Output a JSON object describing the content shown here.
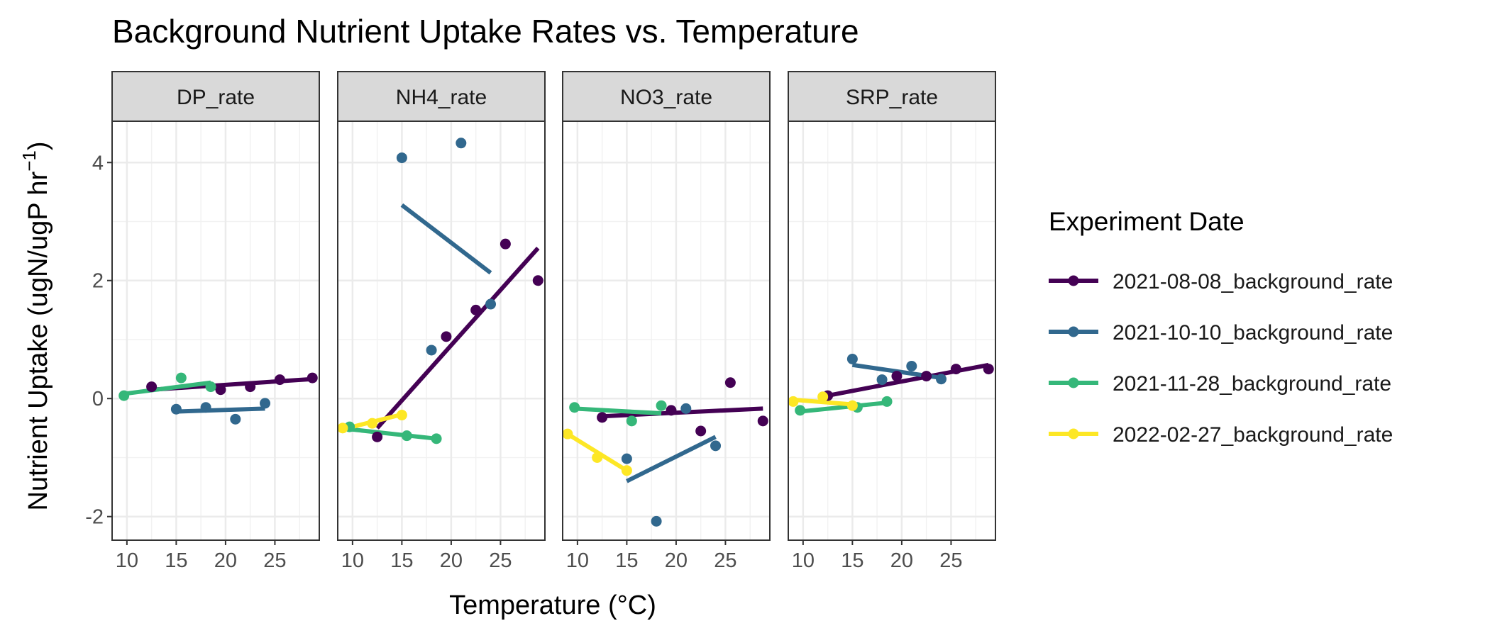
{
  "chart_data": {
    "type": "scatter",
    "title": "Background Nutrient Uptake Rates vs. Temperature",
    "xlabel": "Temperature (°C)",
    "ylabel": {
      "main": "Nutrient Uptake (ugN/ugP hr",
      "superscript": "−1",
      "close": ")"
    },
    "xlim": [
      8.5,
      29.5
    ],
    "ylim": [
      -2.4,
      4.7
    ],
    "xticks": [
      10,
      15,
      20,
      25
    ],
    "yticks": [
      -2,
      0,
      2,
      4
    ],
    "grid": true,
    "legend": {
      "title": "Experiment Date",
      "placement": "right"
    },
    "series": [
      {
        "name": "2021-08-08_background_rate",
        "color": "#440154"
      },
      {
        "name": "2021-10-10_background_rate",
        "color": "#31688E"
      },
      {
        "name": "2021-11-28_background_rate",
        "color": "#35B779"
      },
      {
        "name": "2022-02-27_background_rate",
        "color": "#FDE725"
      }
    ],
    "panels": [
      {
        "label": "DP_rate",
        "points": [
          {
            "series": 0,
            "x": 12.5,
            "y": 0.2
          },
          {
            "series": 0,
            "x": 19.5,
            "y": 0.15
          },
          {
            "series": 0,
            "x": 22.5,
            "y": 0.2
          },
          {
            "series": 0,
            "x": 25.5,
            "y": 0.32
          },
          {
            "series": 0,
            "x": 28.8,
            "y": 0.35
          },
          {
            "series": 1,
            "x": 15,
            "y": -0.18
          },
          {
            "series": 1,
            "x": 18,
            "y": -0.15
          },
          {
            "series": 1,
            "x": 21,
            "y": -0.35
          },
          {
            "series": 1,
            "x": 24,
            "y": -0.08
          },
          {
            "series": 2,
            "x": 9.7,
            "y": 0.05
          },
          {
            "series": 2,
            "x": 15.5,
            "y": 0.35
          },
          {
            "series": 2,
            "x": 18.5,
            "y": 0.2
          }
        ],
        "fits": [
          {
            "series": 0,
            "x": [
              12.5,
              28.8
            ],
            "y": [
              0.15,
              0.33
            ]
          },
          {
            "series": 1,
            "x": [
              15,
              24
            ],
            "y": [
              -0.22,
              -0.17
            ]
          },
          {
            "series": 2,
            "x": [
              9.7,
              18.5
            ],
            "y": [
              0.08,
              0.27
            ]
          }
        ]
      },
      {
        "label": "NH4_rate",
        "points": [
          {
            "series": 0,
            "x": 12.5,
            "y": -0.65
          },
          {
            "series": 0,
            "x": 19.5,
            "y": 1.05
          },
          {
            "series": 0,
            "x": 22.5,
            "y": 1.5
          },
          {
            "series": 0,
            "x": 25.5,
            "y": 2.62
          },
          {
            "series": 0,
            "x": 28.8,
            "y": 2.0
          },
          {
            "series": 1,
            "x": 15,
            "y": 4.08
          },
          {
            "series": 1,
            "x": 18,
            "y": 0.82
          },
          {
            "series": 1,
            "x": 21,
            "y": 4.33
          },
          {
            "series": 1,
            "x": 24,
            "y": 1.6
          },
          {
            "series": 2,
            "x": 9.7,
            "y": -0.48
          },
          {
            "series": 2,
            "x": 15.5,
            "y": -0.63
          },
          {
            "series": 2,
            "x": 18.5,
            "y": -0.68
          },
          {
            "series": 3,
            "x": 9,
            "y": -0.5
          },
          {
            "series": 3,
            "x": 12,
            "y": -0.42
          },
          {
            "series": 3,
            "x": 15,
            "y": -0.28
          }
        ],
        "fits": [
          {
            "series": 0,
            "x": [
              12.5,
              28.8
            ],
            "y": [
              -0.5,
              2.55
            ]
          },
          {
            "series": 1,
            "x": [
              15,
              24
            ],
            "y": [
              3.28,
              2.13
            ]
          },
          {
            "series": 2,
            "x": [
              9.7,
              18.5
            ],
            "y": [
              -0.52,
              -0.68
            ]
          },
          {
            "series": 3,
            "x": [
              9,
              15
            ],
            "y": [
              -0.52,
              -0.27
            ]
          }
        ]
      },
      {
        "label": "NO3_rate",
        "points": [
          {
            "series": 0,
            "x": 12.5,
            "y": -0.32
          },
          {
            "series": 0,
            "x": 19.5,
            "y": -0.2
          },
          {
            "series": 0,
            "x": 22.5,
            "y": -0.55
          },
          {
            "series": 0,
            "x": 25.5,
            "y": 0.27
          },
          {
            "series": 0,
            "x": 28.8,
            "y": -0.38
          },
          {
            "series": 1,
            "x": 15,
            "y": -1.02
          },
          {
            "series": 1,
            "x": 18,
            "y": -2.08
          },
          {
            "series": 1,
            "x": 21,
            "y": -0.17
          },
          {
            "series": 1,
            "x": 24,
            "y": -0.8
          },
          {
            "series": 2,
            "x": 9.7,
            "y": -0.15
          },
          {
            "series": 2,
            "x": 15.5,
            "y": -0.38
          },
          {
            "series": 2,
            "x": 18.5,
            "y": -0.12
          },
          {
            "series": 3,
            "x": 9,
            "y": -0.6
          },
          {
            "series": 3,
            "x": 12,
            "y": -1.0
          },
          {
            "series": 3,
            "x": 15,
            "y": -1.22
          }
        ],
        "fits": [
          {
            "series": 0,
            "x": [
              12.5,
              28.8
            ],
            "y": [
              -0.3,
              -0.17
            ]
          },
          {
            "series": 1,
            "x": [
              15,
              24
            ],
            "y": [
              -1.4,
              -0.65
            ]
          },
          {
            "series": 2,
            "x": [
              9.7,
              18.5
            ],
            "y": [
              -0.17,
              -0.25
            ]
          },
          {
            "series": 3,
            "x": [
              9,
              15
            ],
            "y": [
              -0.6,
              -1.22
            ]
          }
        ]
      },
      {
        "label": "SRP_rate",
        "points": [
          {
            "series": 0,
            "x": 12.5,
            "y": 0.05
          },
          {
            "series": 0,
            "x": 19.5,
            "y": 0.38
          },
          {
            "series": 0,
            "x": 22.5,
            "y": 0.38
          },
          {
            "series": 0,
            "x": 25.5,
            "y": 0.5
          },
          {
            "series": 0,
            "x": 28.8,
            "y": 0.5
          },
          {
            "series": 1,
            "x": 15,
            "y": 0.67
          },
          {
            "series": 1,
            "x": 18,
            "y": 0.32
          },
          {
            "series": 1,
            "x": 21,
            "y": 0.55
          },
          {
            "series": 1,
            "x": 24,
            "y": 0.33
          },
          {
            "series": 2,
            "x": 9.7,
            "y": -0.2
          },
          {
            "series": 2,
            "x": 15.5,
            "y": -0.15
          },
          {
            "series": 2,
            "x": 18.5,
            "y": -0.05
          },
          {
            "series": 3,
            "x": 9,
            "y": -0.05
          },
          {
            "series": 3,
            "x": 12,
            "y": 0.03
          },
          {
            "series": 3,
            "x": 15,
            "y": -0.12
          }
        ],
        "fits": [
          {
            "series": 0,
            "x": [
              12.5,
              28.8
            ],
            "y": [
              0.05,
              0.57
            ]
          },
          {
            "series": 1,
            "x": [
              15,
              24
            ],
            "y": [
              0.57,
              0.35
            ]
          },
          {
            "series": 2,
            "x": [
              9.7,
              18.5
            ],
            "y": [
              -0.22,
              -0.07
            ]
          },
          {
            "series": 3,
            "x": [
              9,
              15
            ],
            "y": [
              -0.02,
              -0.1
            ]
          }
        ]
      }
    ]
  }
}
